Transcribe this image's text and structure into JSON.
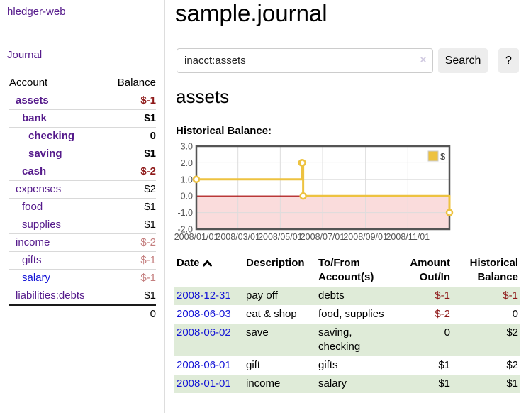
{
  "app": {
    "brand": "hledger-web"
  },
  "sidebar": {
    "journal_link": "Journal",
    "accounts": {
      "headers": {
        "account": "Account",
        "balance": "Balance"
      },
      "rows": [
        {
          "name": "assets",
          "balance": "$-1",
          "indent": 1,
          "bold": true,
          "link_color": "purple",
          "balance_tone": "neg"
        },
        {
          "name": "bank",
          "balance": "$1",
          "indent": 2,
          "bold": true,
          "link_color": "purple",
          "balance_tone": "pos"
        },
        {
          "name": "checking",
          "balance": "0",
          "indent": 3,
          "bold": true,
          "link_color": "purple",
          "balance_tone": "pos"
        },
        {
          "name": "saving",
          "balance": "$1",
          "indent": 3,
          "bold": true,
          "link_color": "purple",
          "balance_tone": "pos"
        },
        {
          "name": "cash",
          "balance": "$-2",
          "indent": 2,
          "bold": true,
          "link_color": "purple",
          "balance_tone": "neg"
        },
        {
          "name": "expenses",
          "balance": "$2",
          "indent": 1,
          "bold": false,
          "link_color": "purple",
          "balance_tone": "pos"
        },
        {
          "name": "food",
          "balance": "$1",
          "indent": 2,
          "bold": false,
          "link_color": "purple",
          "balance_tone": "pos"
        },
        {
          "name": "supplies",
          "balance": "$1",
          "indent": 2,
          "bold": false,
          "link_color": "purple",
          "balance_tone": "pos"
        },
        {
          "name": "income",
          "balance": "$-2",
          "indent": 1,
          "bold": false,
          "link_color": "purple",
          "balance_tone": "neg-muted"
        },
        {
          "name": "gifts",
          "balance": "$-1",
          "indent": 2,
          "bold": false,
          "link_color": "purple",
          "balance_tone": "neg-muted"
        },
        {
          "name": "salary",
          "balance": "$-1",
          "indent": 2,
          "bold": false,
          "link_color": "blue",
          "balance_tone": "neg-muted"
        },
        {
          "name": "liabilities:debts",
          "balance": "$1",
          "indent": 1,
          "bold": false,
          "link_color": "purple",
          "balance_tone": "pos"
        }
      ],
      "total": "0"
    }
  },
  "main": {
    "title": "sample.journal",
    "search": {
      "value": "inacct:assets",
      "clear_label": "×",
      "button": "Search",
      "help": "?"
    },
    "account_heading": "assets",
    "section_label": "Historical Balance:"
  },
  "chart_data": {
    "type": "line",
    "step": true,
    "title": "Historical Balance",
    "x_range": [
      "2008-01-01",
      "2008-12-31"
    ],
    "ylim": [
      -2.0,
      3.0
    ],
    "yticks": [
      3.0,
      2.0,
      1.0,
      0.0,
      -1.0,
      -2.0
    ],
    "xticks": [
      "2008/01/01",
      "2008/03/01",
      "2008/05/01",
      "2008/07/01",
      "2008/09/01",
      "2008/11/01"
    ],
    "legend": {
      "label": "$",
      "position": "top-right"
    },
    "series": [
      {
        "name": "$",
        "color": "#EDC240",
        "points": [
          {
            "date": "2008-01-01",
            "value": 1
          },
          {
            "date": "2008-06-01",
            "value": 2
          },
          {
            "date": "2008-06-02",
            "value": 2
          },
          {
            "date": "2008-06-03",
            "value": 0
          },
          {
            "date": "2008-12-31",
            "value": -1
          }
        ]
      }
    ],
    "grid": true,
    "colors": {
      "gridline": "#dddddd",
      "border": "#545454",
      "tick_text": "#545454",
      "negative_fill": "#fadcdc",
      "zero_line": "#a40000",
      "marker_fill": "#ffffff"
    }
  },
  "register": {
    "headers": {
      "date": "Date",
      "description": "Description",
      "accounts": "To/From Account(s)",
      "amount": "Amount Out/In",
      "balance": "Historical Balance"
    },
    "rows": [
      {
        "date": "2008-12-31",
        "description": "pay off",
        "accounts": "debts",
        "amount": "$-1",
        "amount_tone": "neg",
        "balance": "$-1",
        "balance_tone": "neg"
      },
      {
        "date": "2008-06-03",
        "description": "eat & shop",
        "accounts": "food, supplies",
        "amount": "$-2",
        "amount_tone": "neg",
        "balance": "0",
        "balance_tone": "pos"
      },
      {
        "date": "2008-06-02",
        "description": "save",
        "accounts": "saving,\nchecking",
        "amount": "0",
        "amount_tone": "pos",
        "balance": "$2",
        "balance_tone": "pos"
      },
      {
        "date": "2008-06-01",
        "description": "gift",
        "accounts": "gifts",
        "amount": "$1",
        "amount_tone": "pos",
        "balance": "$2",
        "balance_tone": "pos"
      },
      {
        "date": "2008-01-01",
        "description": "income",
        "accounts": "salary",
        "amount": "$1",
        "amount_tone": "pos",
        "balance": "$1",
        "balance_tone": "pos"
      }
    ]
  }
}
